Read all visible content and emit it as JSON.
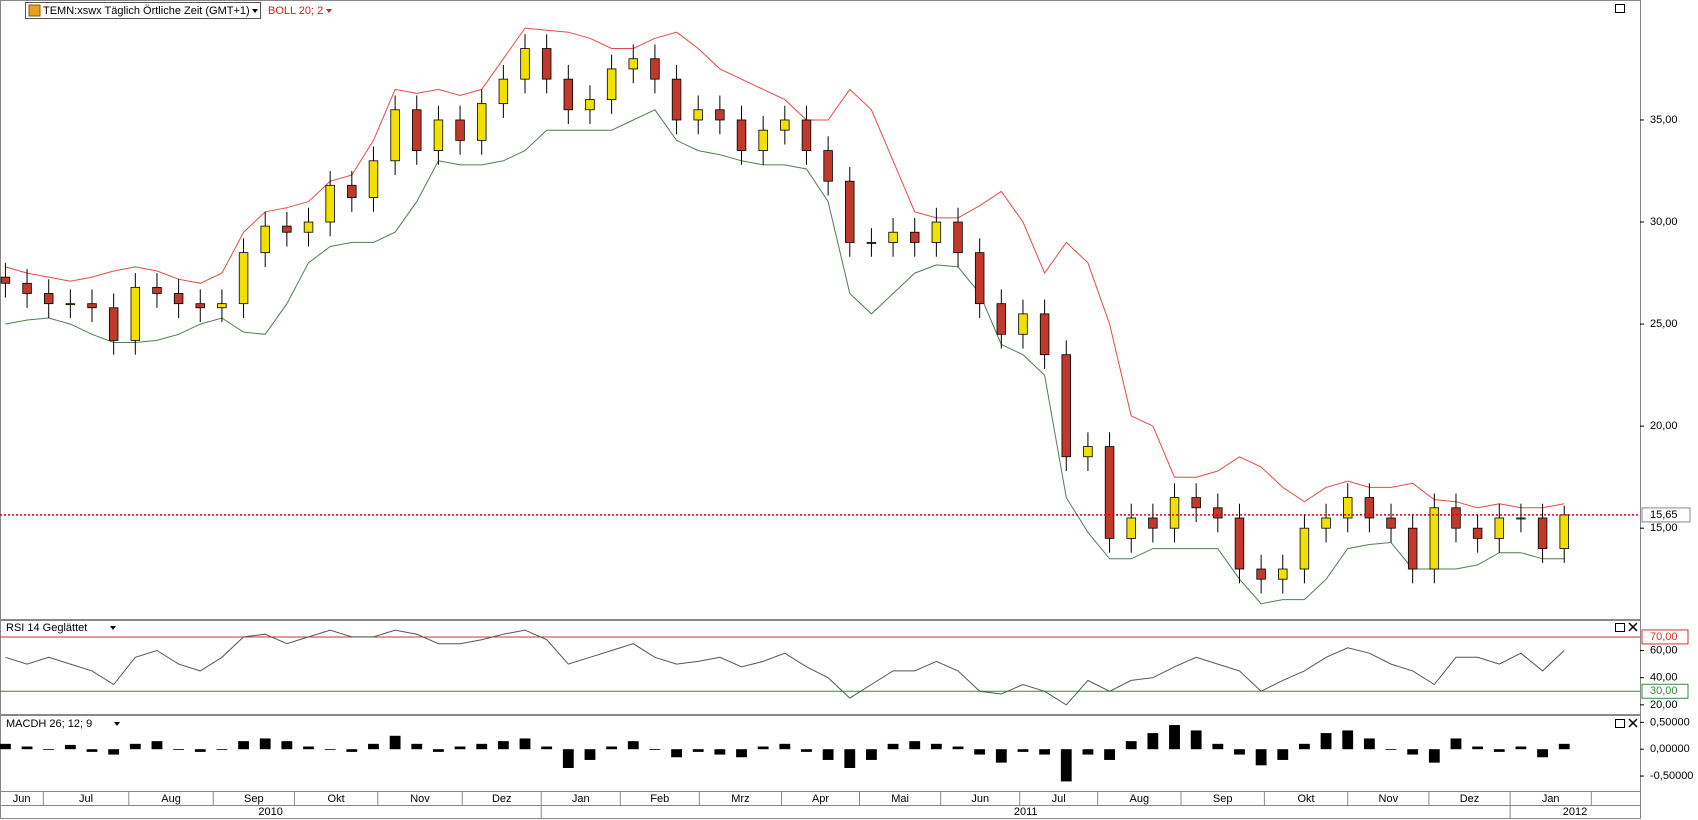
{
  "chart_data": [
    {
      "type": "candlestick",
      "title": "TEMN:xswx Täglich Örtliche Zeit (GMT+1)",
      "indicator": "BOLL 20; 2",
      "up_color": "#f2e000",
      "down_color": "#c0392b",
      "open": [
        27.3,
        27.0,
        26.5,
        26.0,
        26.0,
        25.8,
        24.2,
        26.8,
        26.5,
        26.0,
        25.8,
        26.0,
        28.5,
        29.8,
        29.5,
        30.0,
        31.8,
        31.2,
        33.0,
        35.5,
        33.5,
        35.0,
        34.0,
        35.8,
        37.0,
        38.5,
        37.0,
        35.5,
        36.0,
        37.5,
        38.0,
        37.0,
        35.0,
        35.5,
        35.0,
        33.5,
        34.5,
        35.0,
        33.5,
        32.0,
        29.0,
        29.0,
        29.5,
        29.0,
        30.0,
        28.5,
        26.0,
        24.5,
        25.5,
        23.5,
        18.5,
        19.0,
        14.5,
        15.5,
        15.0,
        16.5,
        16.0,
        15.5,
        13.0,
        12.5,
        13.0,
        15.0,
        15.5,
        16.5,
        15.5,
        15.0,
        13.0,
        16.0,
        15.0,
        14.5,
        15.5,
        15.5,
        14.0
      ],
      "high": [
        28.0,
        27.7,
        27.2,
        26.7,
        26.7,
        26.5,
        27.5,
        27.5,
        27.2,
        26.7,
        26.7,
        29.2,
        30.5,
        30.5,
        30.7,
        32.5,
        32.5,
        33.7,
        36.2,
        36.2,
        35.7,
        35.7,
        36.5,
        37.7,
        39.2,
        39.2,
        37.7,
        36.7,
        38.2,
        38.7,
        38.7,
        37.7,
        36.2,
        36.2,
        35.7,
        35.2,
        35.7,
        35.7,
        34.2,
        32.7,
        29.7,
        30.2,
        30.2,
        30.7,
        30.7,
        29.2,
        26.7,
        26.2,
        26.2,
        24.2,
        19.7,
        19.7,
        16.2,
        16.2,
        17.2,
        17.2,
        16.7,
        16.2,
        13.7,
        13.7,
        15.7,
        16.2,
        17.2,
        17.2,
        16.2,
        15.7,
        16.7,
        16.7,
        15.7,
        16.2,
        16.2,
        16.2,
        16.1
      ],
      "low": [
        26.3,
        25.8,
        25.3,
        25.3,
        25.1,
        23.5,
        23.5,
        25.8,
        25.3,
        25.1,
        25.1,
        25.3,
        27.8,
        28.8,
        28.8,
        29.3,
        30.5,
        30.5,
        32.3,
        32.8,
        32.8,
        33.3,
        33.3,
        35.1,
        36.3,
        36.3,
        34.8,
        34.8,
        35.3,
        36.8,
        36.3,
        34.3,
        34.3,
        34.3,
        32.8,
        32.8,
        33.8,
        32.8,
        31.3,
        28.3,
        28.3,
        28.3,
        28.3,
        28.3,
        27.8,
        25.3,
        23.8,
        23.8,
        22.8,
        17.8,
        17.8,
        13.8,
        13.8,
        14.3,
        14.3,
        15.3,
        14.8,
        12.3,
        11.8,
        11.8,
        12.3,
        14.3,
        14.8,
        14.8,
        14.3,
        12.3,
        12.3,
        14.3,
        13.8,
        13.8,
        14.8,
        13.3,
        13.3
      ],
      "close": [
        27.0,
        26.5,
        26.0,
        26.0,
        25.8,
        24.2,
        26.8,
        26.5,
        26.0,
        25.8,
        26.0,
        28.5,
        29.8,
        29.5,
        30.0,
        31.8,
        31.2,
        33.0,
        35.5,
        33.5,
        35.0,
        34.0,
        35.8,
        37.0,
        38.5,
        37.0,
        35.5,
        36.0,
        37.5,
        38.0,
        37.0,
        35.0,
        35.5,
        35.0,
        33.5,
        34.5,
        35.0,
        33.5,
        32.0,
        29.0,
        29.0,
        29.5,
        29.0,
        30.0,
        28.5,
        26.0,
        24.5,
        25.5,
        23.5,
        18.5,
        19.0,
        14.5,
        15.5,
        15.0,
        16.5,
        16.0,
        15.5,
        13.0,
        12.5,
        13.0,
        15.0,
        15.5,
        16.5,
        15.5,
        15.0,
        13.0,
        16.0,
        15.0,
        14.5,
        15.5,
        15.5,
        14.0,
        15.65
      ],
      "bollinger": {
        "upper_color": "#e84a4a",
        "lower_color": "#4f7f4f",
        "upper": [
          27.8,
          27.5,
          27.3,
          27.1,
          27.3,
          27.6,
          27.8,
          27.6,
          27.2,
          27.0,
          27.5,
          29.5,
          30.5,
          30.7,
          31.0,
          32.0,
          32.3,
          34.0,
          36.5,
          36.3,
          36.5,
          36.2,
          36.5,
          38.0,
          39.5,
          39.4,
          39.3,
          39.0,
          38.5,
          38.5,
          39.0,
          39.3,
          38.5,
          37.5,
          37.0,
          36.5,
          36.0,
          35.0,
          35.0,
          36.5,
          35.5,
          33.0,
          30.5,
          30.2,
          30.2,
          30.8,
          31.5,
          30.0,
          27.5,
          29.0,
          28.0,
          25.0,
          20.5,
          20.0,
          17.5,
          17.5,
          17.8,
          18.5,
          18.0,
          17.0,
          16.3,
          17.0,
          17.3,
          17.0,
          17.0,
          17.2,
          16.4,
          16.3,
          16.0,
          16.2,
          16.0,
          16.0,
          16.2
        ],
        "lower": [
          25.0,
          25.2,
          25.3,
          25.0,
          24.5,
          24.1,
          24.1,
          24.2,
          24.5,
          25.0,
          25.3,
          24.6,
          24.5,
          26.0,
          28.0,
          28.8,
          29.0,
          29.0,
          29.5,
          31.0,
          33.0,
          32.8,
          32.8,
          33.0,
          33.5,
          34.5,
          34.5,
          34.5,
          34.5,
          35.0,
          35.5,
          34.0,
          33.5,
          33.3,
          33.0,
          32.8,
          32.8,
          32.6,
          31.0,
          26.5,
          25.5,
          26.5,
          27.5,
          27.9,
          27.8,
          26.5,
          24.0,
          23.5,
          22.5,
          16.5,
          14.8,
          13.5,
          13.5,
          14.0,
          14.0,
          14.0,
          14.0,
          12.5,
          11.3,
          11.5,
          11.5,
          12.5,
          14.0,
          14.2,
          14.3,
          13.0,
          13.0,
          13.0,
          13.2,
          13.8,
          13.8,
          13.5,
          13.5
        ]
      },
      "current": {
        "value": 15.65,
        "label": "15,65"
      },
      "current_color": "#e00000",
      "ylim": [
        10.6,
        39.8
      ],
      "yticks": [
        {
          "value": 15,
          "label": "15,00"
        },
        {
          "value": 20,
          "label": "20,00"
        },
        {
          "value": 25,
          "label": "25,00"
        },
        {
          "value": 30,
          "label": "30,00"
        },
        {
          "value": 35,
          "label": "35,00"
        }
      ],
      "xlim": [
        -0.25,
        75.5
      ],
      "xticks": [
        {
          "value": -0.25,
          "label": "Jun"
        },
        {
          "value": 1.75,
          "label": "Jul"
        },
        {
          "value": 5.7,
          "label": "Aug"
        },
        {
          "value": 9.6,
          "label": "Sep"
        },
        {
          "value": 13.35,
          "label": "Okt"
        },
        {
          "value": 17.2,
          "label": "Nov"
        },
        {
          "value": 21.1,
          "label": "Dez"
        },
        {
          "value": 24.75,
          "label": "Jan"
        },
        {
          "value": 28.4,
          "label": "Feb"
        },
        {
          "value": 32.05,
          "label": "Mrz"
        },
        {
          "value": 35.85,
          "label": "Apr"
        },
        {
          "value": 39.45,
          "label": "Mai"
        },
        {
          "value": 43.2,
          "label": "Jun"
        },
        {
          "value": 46.85,
          "label": "Jul"
        },
        {
          "value": 50.45,
          "label": "Aug"
        },
        {
          "value": 54.3,
          "label": "Sep"
        },
        {
          "value": 58.15,
          "label": "Okt"
        },
        {
          "value": 62,
          "label": "Nov"
        },
        {
          "value": 65.75,
          "label": "Dez"
        },
        {
          "value": 69.5,
          "label": "Jan"
        },
        {
          "value": 73.25,
          "label": null
        }
      ],
      "years": [
        {
          "value": -0.25,
          "label": "2010"
        },
        {
          "value": 24.75,
          "label": "2011"
        },
        {
          "value": 69.5,
          "label": "2012"
        }
      ]
    },
    {
      "type": "line",
      "title": "RSI 14 Geglättet",
      "color": "#555555",
      "values": [
        55,
        50,
        55,
        50,
        45,
        35,
        55,
        60,
        50,
        45,
        55,
        70,
        72,
        65,
        70,
        75,
        70,
        70,
        75,
        72,
        65,
        65,
        68,
        72,
        75,
        68,
        50,
        55,
        60,
        65,
        55,
        50,
        52,
        55,
        48,
        52,
        58,
        48,
        40,
        25,
        35,
        45,
        45,
        52,
        45,
        30,
        28,
        35,
        30,
        20,
        38,
        30,
        38,
        40,
        48,
        55,
        50,
        45,
        30,
        38,
        45,
        55,
        62,
        58,
        50,
        45,
        35,
        55,
        55,
        50,
        58,
        45,
        60
      ],
      "ylim": [
        14,
        81
      ],
      "yticks": [
        {
          "value": 20,
          "label": "20,00"
        },
        {
          "value": 40,
          "label": "40,00"
        },
        {
          "value": 60,
          "label": "60,00"
        }
      ],
      "levels": [
        {
          "value": 70,
          "label": "70,00"
        },
        {
          "value": 30,
          "label": "30,00"
        }
      ],
      "level_colors": [
        "#d03030",
        "#3a8a3a"
      ]
    },
    {
      "type": "bar",
      "title": "MACDH 26; 12; 9",
      "color": "#000000",
      "values": [
        0.1,
        0.05,
        0.0,
        0.08,
        -0.05,
        -0.1,
        0.1,
        0.15,
        0.0,
        -0.05,
        0.0,
        0.15,
        0.2,
        0.15,
        0.05,
        0.0,
        -0.05,
        0.1,
        0.25,
        0.1,
        -0.05,
        0.05,
        0.1,
        0.15,
        0.2,
        0.05,
        -0.35,
        -0.2,
        0.05,
        0.15,
        0.0,
        -0.15,
        -0.05,
        -0.1,
        -0.15,
        0.05,
        0.1,
        -0.05,
        -0.2,
        -0.35,
        -0.2,
        0.1,
        0.15,
        0.1,
        0.05,
        -0.1,
        -0.25,
        -0.05,
        -0.1,
        -0.6,
        -0.1,
        -0.2,
        0.15,
        0.3,
        0.45,
        0.35,
        0.1,
        -0.1,
        -0.3,
        -0.2,
        0.1,
        0.3,
        0.35,
        0.2,
        0.0,
        -0.1,
        -0.25,
        0.2,
        0.05,
        -0.05,
        0.05,
        -0.15,
        0.1
      ],
      "ylim": [
        -0.76,
        0.6
      ],
      "yticks": [
        {
          "value": -0.5,
          "label": "-0,50000"
        },
        {
          "value": 0,
          "label": "0,00000"
        },
        {
          "value": 0.5,
          "label": "0,50000"
        }
      ]
    }
  ]
}
